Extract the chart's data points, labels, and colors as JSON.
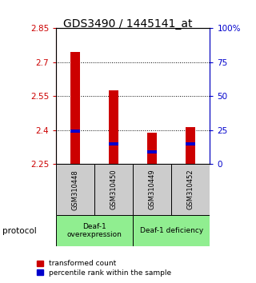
{
  "title": "GDS3490 / 1445141_at",
  "samples": [
    "GSM310448",
    "GSM310450",
    "GSM310449",
    "GSM310452"
  ],
  "red_values": [
    2.745,
    2.575,
    2.39,
    2.415
  ],
  "blue_values": [
    2.395,
    2.34,
    2.305,
    2.34
  ],
  "ylim": [
    2.25,
    2.85
  ],
  "yticks_left": [
    2.25,
    2.4,
    2.55,
    2.7,
    2.85
  ],
  "yticks_right": [
    0,
    25,
    50,
    75,
    100
  ],
  "ytick_labels_right": [
    "0",
    "25",
    "50",
    "75",
    "100%"
  ],
  "ytick_labels_left": [
    "2.25",
    "2.4",
    "2.55",
    "2.7",
    "2.85"
  ],
  "bar_bottom": 2.25,
  "bar_width": 0.25,
  "red_color": "#cc0000",
  "blue_color": "#0000cc",
  "group1_label": "Deaf-1\noverexpression",
  "group2_label": "Deaf-1 deficiency",
  "legend_red": "transformed count",
  "legend_blue": "percentile rank within the sample",
  "protocol_label": "protocol",
  "title_fontsize": 10,
  "tick_fontsize": 7.5,
  "group_bg_color": "#90ee90",
  "sample_bg_color": "#cccccc",
  "bg_color": "#ffffff",
  "blue_bar_height": 0.015
}
